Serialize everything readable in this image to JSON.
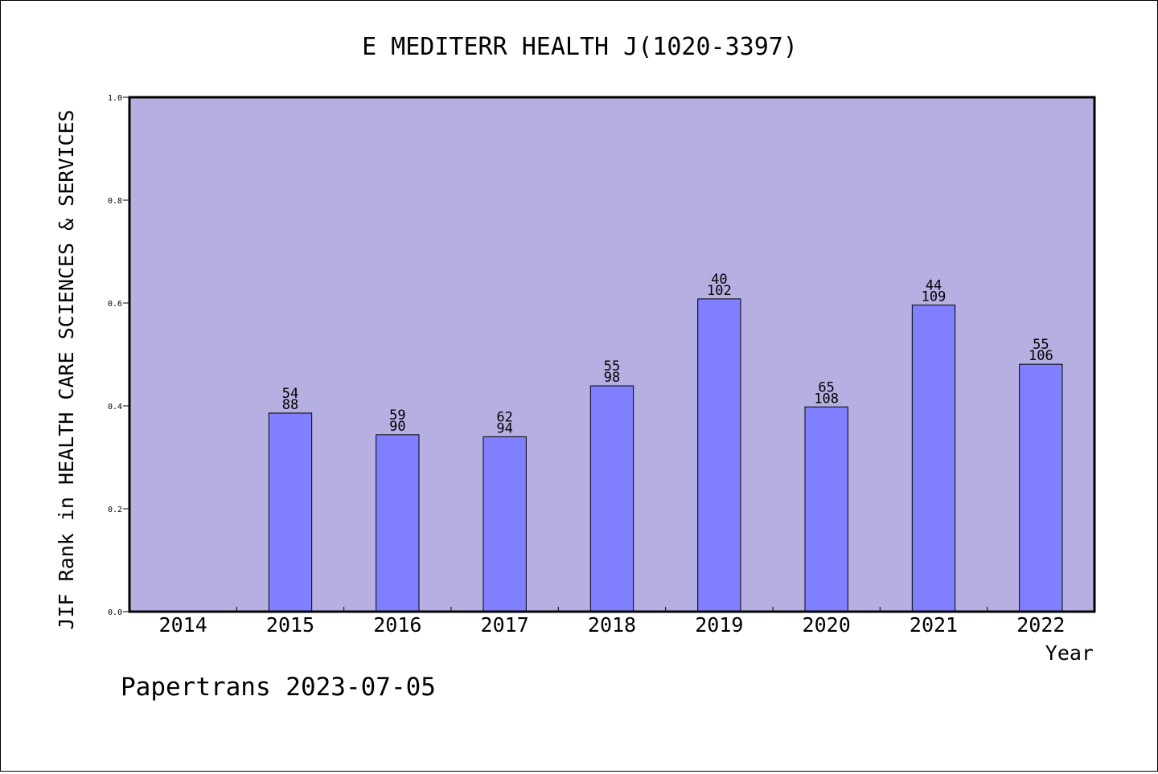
{
  "chart_data": {
    "type": "bar",
    "title": "E MEDITERR HEALTH J(1020-3397)",
    "xlabel": "Year",
    "ylabel": "JIF Rank in HEALTH CARE SCIENCES & SERVICES",
    "ylim": [
      0,
      1.0
    ],
    "y_ticks": [
      "0.0",
      "0.2",
      "0.4",
      "0.6",
      "0.8",
      "1.0"
    ],
    "categories": [
      "2014",
      "2015",
      "2016",
      "2017",
      "2018",
      "2019",
      "2020",
      "2021",
      "2022"
    ],
    "values": [
      null,
      0.386,
      0.344,
      0.34,
      0.439,
      0.608,
      0.398,
      0.596,
      0.481
    ],
    "label_top": [
      null,
      "54",
      "59",
      "62",
      "55",
      "40",
      "65",
      "44",
      "55"
    ],
    "label_bottom": [
      null,
      "88",
      "90",
      "94",
      "98",
      "102",
      "108",
      "109",
      "106"
    ],
    "grid": false,
    "legend": "none",
    "colors": {
      "plot_background": "#b6b0e2",
      "bar_fill": "#8080ff",
      "bar_stroke": "#000000"
    }
  },
  "footer": {
    "credit": "Papertrans 2023-07-05"
  }
}
